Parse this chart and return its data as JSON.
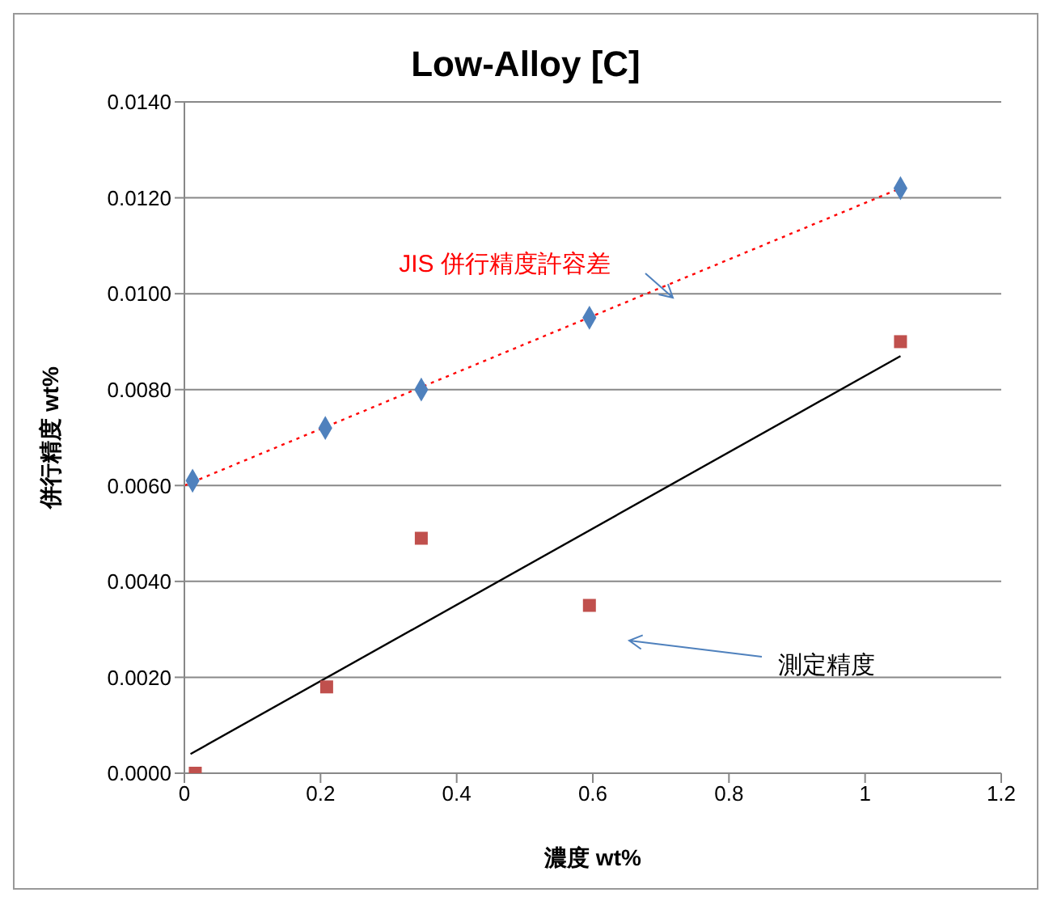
{
  "chart_data": {
    "type": "scatter",
    "title": "Low-Alloy [C]",
    "xlabel": "濃度 wt%",
    "ylabel": "併行精度 wt%",
    "xlim": [
      0,
      1.2
    ],
    "xticks": [
      0,
      0.2,
      0.4,
      0.6,
      0.8,
      1,
      1.2
    ],
    "ylim": [
      0,
      0.014
    ],
    "yticks": [
      {
        "value": 0,
        "label": "0.0000"
      },
      {
        "value": 0.002,
        "label": "0.0020"
      },
      {
        "value": 0.004,
        "label": "0.0040"
      },
      {
        "value": 0.006,
        "label": "0.0060"
      },
      {
        "value": 0.008,
        "label": "0.0080"
      },
      {
        "value": 0.01,
        "label": "0.0100"
      },
      {
        "value": 0.012,
        "label": "0.0120"
      },
      {
        "value": 0.014,
        "label": "0.0140"
      }
    ],
    "grid": "y",
    "legend": false,
    "series": [
      {
        "marker": "diamond",
        "color": "#4f81bd",
        "x": [
          0.012,
          0.207,
          0.348,
          0.595,
          1.052
        ],
        "values": [
          0.0061,
          0.0072,
          0.008,
          0.0095,
          0.0122
        ]
      },
      {
        "marker": "square",
        "color": "#c0504d",
        "x": [
          0.016,
          0.209,
          0.348,
          0.595,
          1.052
        ],
        "values": [
          0,
          0.0018,
          0.0049,
          0.0035,
          0.009
        ]
      },
      {
        "type": "line",
        "marker": "none",
        "line_style": "dotted",
        "color": "#ff0000",
        "x": [
          0.0,
          1.052
        ],
        "values": [
          0.006,
          0.0122
        ]
      },
      {
        "type": "line",
        "marker": "none",
        "line_style": "solid",
        "color": "#000000",
        "x": [
          0.009,
          1.052
        ],
        "values": [
          0.0004,
          0.0087
        ]
      }
    ],
    "annotations": [
      "JIS 併行精度許容差",
      "測定精度"
    ]
  }
}
